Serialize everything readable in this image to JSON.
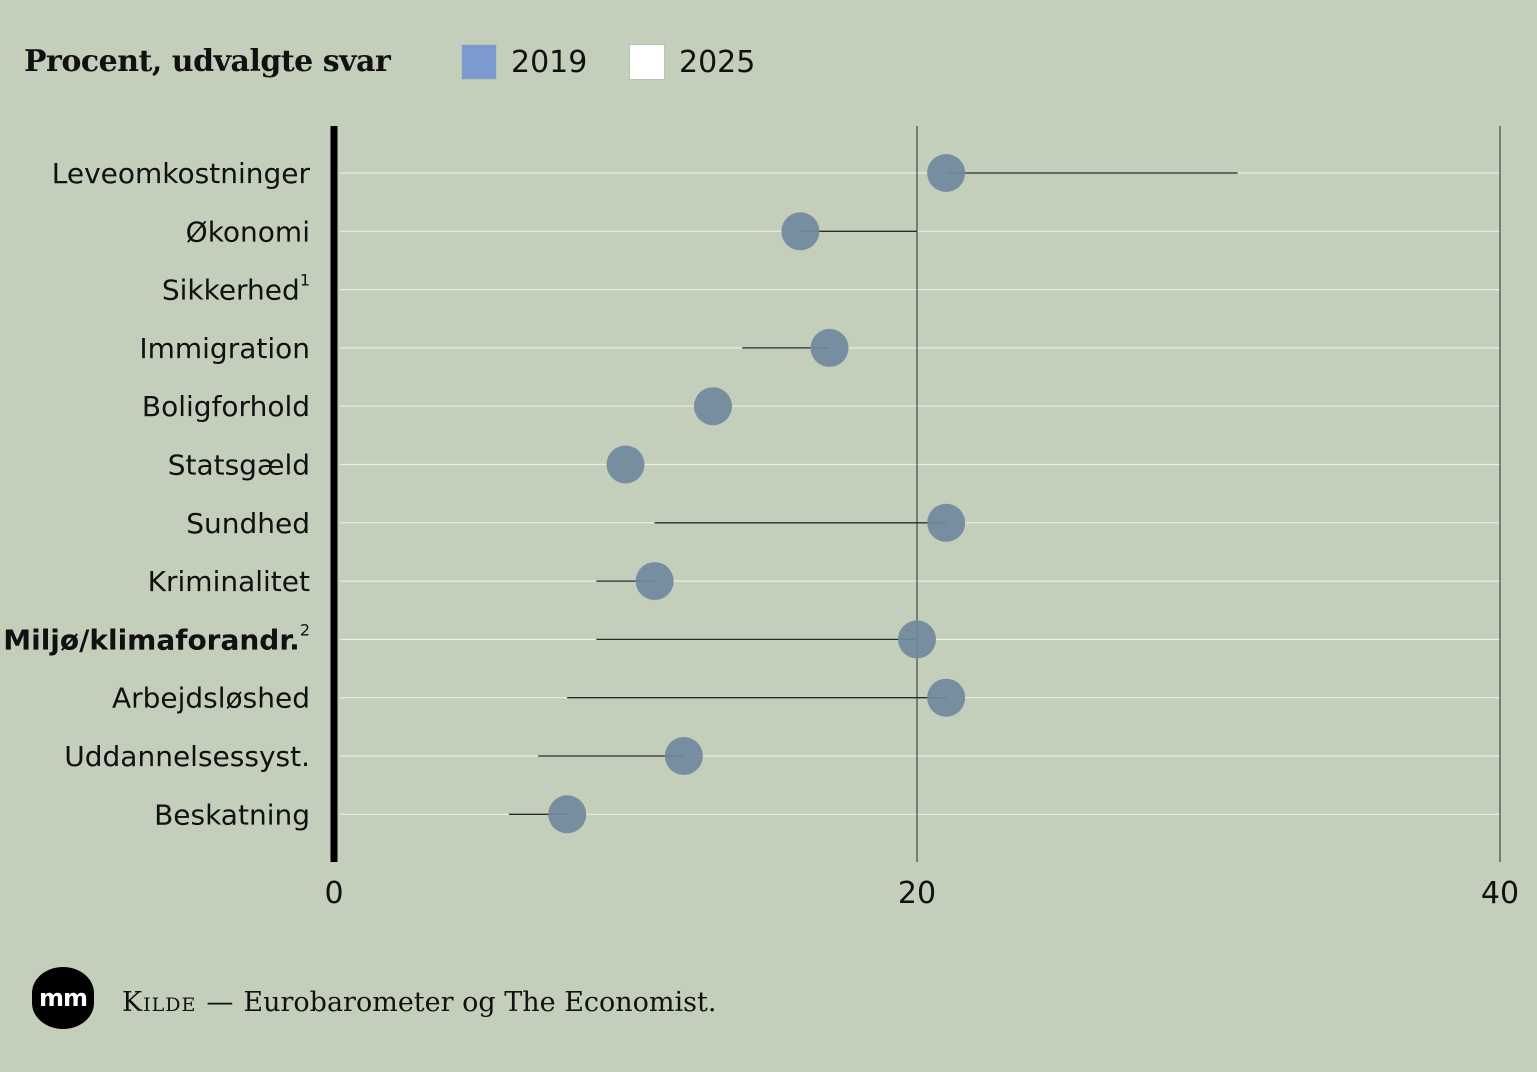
{
  "header": {
    "title": "Procent, udvalgte svar"
  },
  "legend": [
    {
      "label": "2019",
      "color": "#7b9bd0"
    },
    {
      "label": "2025",
      "color": "#ffffff"
    }
  ],
  "footer": {
    "logo_text": "mm",
    "source_label": "Kilde",
    "source_sep": "—",
    "source_text": "Eurobarometer og The Economist."
  },
  "chart_data": {
    "type": "dot",
    "title": "Procent, udvalgte svar",
    "xlim": [
      0,
      40
    ],
    "x_ticks": [
      0,
      20,
      40
    ],
    "grid": true,
    "dot_color": "#71899d",
    "categories": [
      "Leveomkostninger",
      "Økonomi",
      "Sikkerhed",
      "Immigration",
      "Boligforhold",
      "Statsgæld",
      "Sundhed",
      "Kriminalitet",
      "Miljø/klimaforandr.",
      "Arbejdsløshed",
      "Uddannelsessyst.",
      "Beskatning"
    ],
    "category_footnotes": [
      "",
      "",
      "1",
      "",
      "",
      "",
      "",
      "",
      "2",
      "",
      "",
      ""
    ],
    "highlighted_category": "Miljø/klimaforandr.",
    "series": [
      {
        "name": "2019",
        "values": [
          31,
          20,
          null,
          14,
          null,
          null,
          11,
          9,
          9,
          8,
          7,
          6
        ]
      },
      {
        "name": "2025",
        "values": [
          21,
          16,
          null,
          17,
          13,
          10,
          21,
          11,
          20,
          21,
          12,
          8
        ]
      }
    ]
  }
}
